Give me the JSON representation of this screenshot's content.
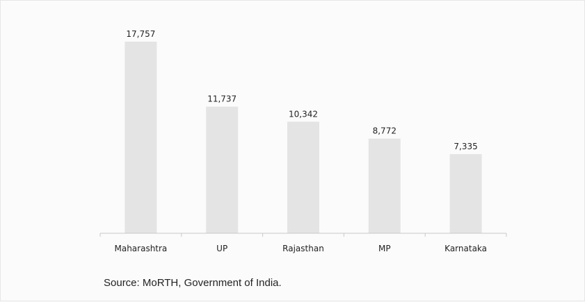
{
  "chart_data": {
    "type": "bar",
    "categories": [
      "Maharashtra",
      "UP",
      "Rajasthan",
      "MP",
      "Karnataka"
    ],
    "values": [
      17757,
      11737,
      10342,
      8772,
      7335
    ],
    "value_labels": [
      "17,757",
      "11,737",
      "10,342",
      "8,772",
      "7,335"
    ],
    "bar_color": "#e4e4e4",
    "axis_color": "#c8c8c8",
    "grid": false,
    "legend": "none",
    "ylim": [
      0,
      20000
    ]
  },
  "source_note": "Source: MoRTH, Government of India."
}
